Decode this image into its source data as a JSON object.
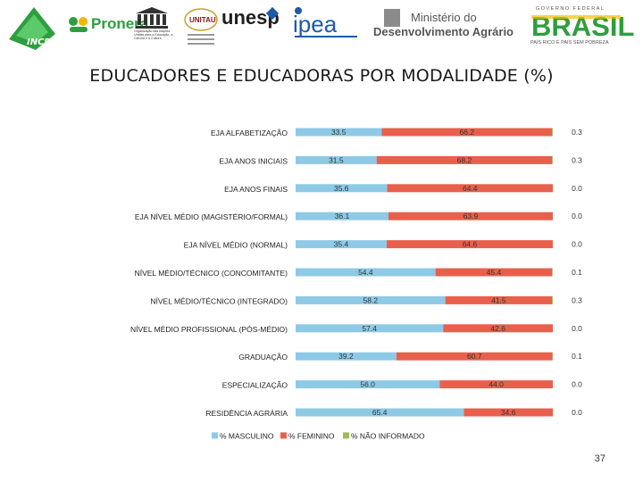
{
  "logos": {
    "incra": "INCRA",
    "pronera": "Pronera",
    "unesco_text": "Organização das Nações Unidas para a Educação, a Ciência e a Cultura",
    "unitau": "UNITAU",
    "unesp": "unesp",
    "ipea": "ipea",
    "ministerio_line1": "Ministério do",
    "ministerio_line2": "Desenvolvimento Agrário",
    "gov_line1": "GOVERNO FEDERAL",
    "brasil": "BRASIL",
    "gov_line2": "PAÍS RICO É PAÍS SEM POBREZA"
  },
  "title": "EDUCADORES E EDUCADORAS POR MODALIDADE (%)",
  "page_number": "37",
  "colors": {
    "masculino": "#8ecae6",
    "feminino": "#e8604c",
    "nao_informado": "#9bbb59"
  },
  "chart_data": {
    "type": "bar",
    "orientation": "horizontal",
    "stacked": true,
    "title": "EDUCADORES E EDUCADORAS POR MODALIDADE (%)",
    "xlim": [
      0,
      100
    ],
    "legend_position": "bottom",
    "categories": [
      "EJA ALFABETIZAÇÃO",
      "EJA ANOS INICIAIS",
      "EJA ANOS FINAIS",
      "EJA NÍVEL MÉDIO (MAGISTÉRIO/FORMAL)",
      "EJA NÍVEL MÉDIO (NORMAL)",
      "NÍVEL MÉDIO/TÉCNICO (CONCOMITANTE)",
      "NÍVEL MÉDIO/TÉCNICO (INTEGRADO)",
      "NÍVEL MÉDIO PROFISSIONAL (PÓS-MÉDIO)",
      "GRADUAÇÃO",
      "ESPECIALIZAÇÃO",
      "RESIDÊNCIA AGRÁRIA"
    ],
    "series": [
      {
        "name": "% MASCULINO",
        "values": [
          33.5,
          31.5,
          35.6,
          36.1,
          35.4,
          54.4,
          58.2,
          57.4,
          39.2,
          56.0,
          65.4
        ],
        "labels": [
          "33.5",
          "31.5",
          "35.6",
          "36.1",
          "35.4",
          "54.4",
          "58.2",
          "57.4",
          "39.2",
          "56.0",
          "65.4"
        ]
      },
      {
        "name": "% FEMININO",
        "values": [
          66.2,
          68.2,
          64.4,
          63.9,
          64.6,
          45.4,
          41.5,
          42.6,
          60.7,
          44.0,
          34.6
        ],
        "labels": [
          "66.2",
          "68.2",
          "64.4",
          "63.9",
          "64.6",
          "45.4",
          "41.5",
          "42.6",
          "60.7",
          "44.0",
          "34.6"
        ]
      },
      {
        "name": "% NÃO INFORMADO",
        "values": [
          0.3,
          0.3,
          0.0,
          0.0,
          0.0,
          0.1,
          0.3,
          0.0,
          0.1,
          0.0,
          0.0
        ],
        "labels": [
          "0.3",
          "0.3",
          "0.0",
          "0.0",
          "0.0",
          "0.1",
          "0.3",
          "0.0",
          "0.1",
          "0.0",
          "0.0"
        ]
      }
    ]
  }
}
